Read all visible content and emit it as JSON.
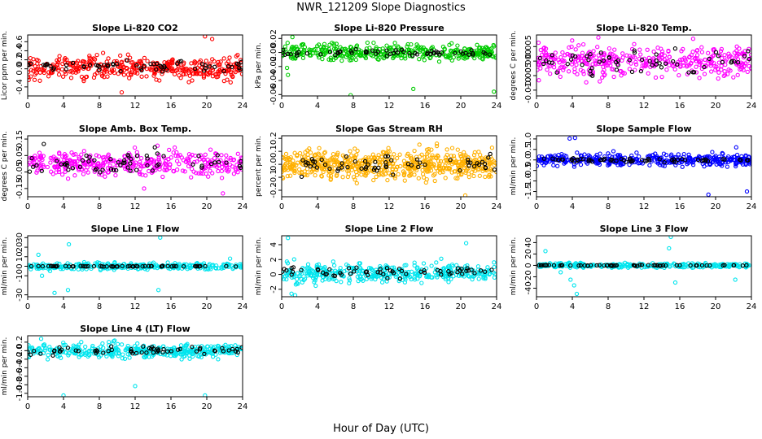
{
  "figure": {
    "title": "NWR_121209  Slope Diagnostics",
    "xlabel": "Hour of Day (UTC)"
  },
  "chart_data": [
    {
      "type": "scatter",
      "title": "Slope Li-820 CO2",
      "ylabel": "Licor ppm per min.",
      "color": "#ff0000",
      "xlim": [
        0,
        24
      ],
      "xticks": [
        0,
        4,
        8,
        12,
        16,
        20,
        24
      ],
      "ylim": [
        -0.6,
        0.75
      ],
      "yticks": [
        -0.4,
        0,
        0.2,
        0.4,
        0.6
      ],
      "ytick_labels": [
        "-0.4",
        "0.0",
        "0.2",
        "0.4",
        "0.6"
      ],
      "series": [
        {
          "color": "#ff0000",
          "n": 380,
          "mean": 0.02,
          "sd": 0.18,
          "outliers": [
            [
              19.8,
              0.72
            ],
            [
              20.6,
              0.66
            ],
            [
              10.5,
              -0.52
            ]
          ]
        },
        {
          "color": "#000000",
          "n": 60,
          "mean": 0.06,
          "sd": 0.08,
          "outliers": []
        }
      ]
    },
    {
      "type": "scatter",
      "title": "Slope Li-820 Pressure",
      "ylabel": "kPa per min.",
      "color": "#00cc00",
      "xlim": [
        0,
        24
      ],
      "xticks": [
        0,
        4,
        8,
        12,
        16,
        20,
        24
      ],
      "ylim": [
        -0.062,
        0.025
      ],
      "yticks": [
        -0.06,
        -0.04,
        -0.02,
        0,
        0.02
      ],
      "ytick_labels": [
        "-0.06",
        "-0.04",
        "-0.02",
        "0.00",
        "0.02"
      ],
      "series": [
        {
          "color": "#00cc00",
          "n": 380,
          "mean": 0.0,
          "sd": 0.008,
          "outliers": [
            [
              0.6,
              -0.022
            ],
            [
              0.7,
              -0.032
            ],
            [
              7.7,
              -0.061
            ],
            [
              14.7,
              -0.052
            ],
            [
              23.7,
              -0.056
            ],
            [
              1.2,
              0.022
            ]
          ]
        },
        {
          "color": "#000000",
          "n": 60,
          "mean": 0.0,
          "sd": 0.003,
          "outliers": []
        }
      ]
    },
    {
      "type": "scatter",
      "title": "Slope Li-820 Temp.",
      "ylabel": "degrees C per min.",
      "color": "#ff00ff",
      "xlim": [
        0,
        24
      ],
      "xticks": [
        0,
        4,
        8,
        12,
        16,
        20,
        24
      ],
      "ylim": [
        -0.012,
        0.009
      ],
      "yticks": [
        -0.01,
        -0.005,
        0,
        0.005
      ],
      "ytick_labels": [
        "-0.010",
        "-0.005",
        "0.000",
        "0.005"
      ],
      "series": [
        {
          "color": "#ff00ff",
          "n": 380,
          "mean": 0.0,
          "sd": 0.004,
          "outliers": []
        },
        {
          "color": "#000000",
          "n": 60,
          "mean": 0.0,
          "sd": 0.003,
          "outliers": []
        }
      ]
    },
    {
      "type": "scatter",
      "title": "Slope Amb. Box Temp.",
      "ylabel": "degrees C per min.",
      "color": "#ff00ff",
      "xlim": [
        0,
        24
      ],
      "xticks": [
        0,
        4,
        8,
        12,
        16,
        20,
        24
      ],
      "ylim": [
        -0.2,
        0.17
      ],
      "yticks": [
        -0.15,
        -0.05,
        0.05,
        0.15
      ],
      "ytick_labels": [
        "-0.15",
        "-0.05",
        "0.05",
        "0.15"
      ],
      "series": [
        {
          "color": "#ff00ff",
          "n": 380,
          "mean": 0.0,
          "sd": 0.05,
          "outliers": [
            [
              14.5,
              0.11
            ],
            [
              21.8,
              -0.18
            ],
            [
              13,
              -0.15
            ]
          ]
        },
        {
          "color": "#000000",
          "n": 60,
          "mean": 0.0,
          "sd": 0.045,
          "outliers": [
            [
              1.8,
              0.12
            ],
            [
              14.2,
              0.1
            ]
          ]
        }
      ]
    },
    {
      "type": "scatter",
      "title": "Slope Gas Stream RH",
      "ylabel": "percent per min.",
      "color": "#ffb000",
      "xlim": [
        0,
        24
      ],
      "xticks": [
        0,
        4,
        8,
        12,
        16,
        20,
        24
      ],
      "ylim": [
        -0.25,
        0.22
      ],
      "yticks": [
        -0.2,
        -0.1,
        0,
        0.1,
        0.2
      ],
      "ytick_labels": [
        "-0.2",
        "-0.1",
        "0.0",
        "0.1",
        "0.2"
      ],
      "series": [
        {
          "color": "#ffb000",
          "n": 600,
          "mean": 0.0,
          "sd": 0.08,
          "outliers": [
            [
              20.5,
              -0.24
            ]
          ]
        },
        {
          "color": "#000000",
          "n": 60,
          "mean": 0.0,
          "sd": 0.06,
          "outliers": []
        }
      ]
    },
    {
      "type": "scatter",
      "title": "Slope Sample Flow",
      "ylabel": "ml/min per min.",
      "color": "#0000ff",
      "xlim": [
        0,
        24
      ],
      "xticks": [
        0,
        4,
        8,
        12,
        16,
        20,
        24
      ],
      "ylim": [
        -1.75,
        1.15
      ],
      "yticks": [
        -1.5,
        -1,
        -0.5,
        0,
        0.5,
        1
      ],
      "ytick_labels": [
        "-1.5",
        "-1.0",
        "-0.5",
        "0.0",
        "0.5",
        "1.0"
      ],
      "series": [
        {
          "color": "#0000ff",
          "n": 380,
          "mean": 0.0,
          "sd": 0.2,
          "outliers": [
            [
              3.7,
              1.02
            ],
            [
              4.3,
              1.05
            ],
            [
              19.2,
              -1.65
            ],
            [
              23.5,
              -1.5
            ],
            [
              22.3,
              0.6
            ]
          ]
        },
        {
          "color": "#000000",
          "n": 60,
          "mean": 0.0,
          "sd": 0.06,
          "outliers": []
        }
      ]
    },
    {
      "type": "scatter",
      "title": "Slope Line 1 Flow",
      "ylabel": "ml/min per min.",
      "color": "#00e5ee",
      "xlim": [
        0,
        24
      ],
      "xticks": [
        0,
        4,
        8,
        12,
        16,
        20,
        24
      ],
      "ylim": [
        -32,
        32
      ],
      "yticks": [
        -30,
        -10,
        0,
        10,
        20,
        30
      ],
      "ytick_labels": [
        "-30",
        "-10",
        "0",
        "10",
        "20",
        "30"
      ],
      "series": [
        {
          "color": "#00e5ee",
          "n": 300,
          "mean": 0.0,
          "sd": 2.5,
          "outliers": [
            [
              4.6,
              23
            ],
            [
              14.8,
              30
            ],
            [
              3,
              -28
            ],
            [
              4.5,
              -25
            ],
            [
              14.6,
              -25
            ],
            [
              22.6,
              8
            ],
            [
              2.5,
              -5
            ],
            [
              1.2,
              12
            ],
            [
              1.6,
              -10
            ]
          ]
        },
        {
          "color": "#000000",
          "n": 60,
          "mean": 0.0,
          "sd": 0.3,
          "outliers": []
        }
      ]
    },
    {
      "type": "scatter",
      "title": "Slope Line 2 Flow",
      "ylabel": "ml/min per min.",
      "color": "#00e5ee",
      "xlim": [
        0,
        24
      ],
      "xticks": [
        0,
        4,
        8,
        12,
        16,
        20,
        24
      ],
      "ylim": [
        -3,
        5.2
      ],
      "yticks": [
        -2,
        0,
        2,
        4
      ],
      "ytick_labels": [
        "-2",
        "0",
        "2",
        "4"
      ],
      "series": [
        {
          "color": "#00e5ee",
          "n": 380,
          "mean": 0.2,
          "sd": 0.9,
          "outliers": [
            [
              0.7,
              4.9
            ],
            [
              20.6,
              4.2
            ],
            [
              1.1,
              -2.6
            ],
            [
              1.5,
              -2.8
            ]
          ]
        },
        {
          "color": "#000000",
          "n": 60,
          "mean": 0.3,
          "sd": 0.5,
          "outliers": []
        }
      ]
    },
    {
      "type": "scatter",
      "title": "Slope Line 3 Flow",
      "ylabel": "ml/min per min.",
      "color": "#00e5ee",
      "xlim": [
        0,
        24
      ],
      "xticks": [
        0,
        4,
        8,
        12,
        16,
        20,
        24
      ],
      "ylim": [
        -55,
        52
      ],
      "yticks": [
        -40,
        -20,
        0,
        20,
        40
      ],
      "ytick_labels": [
        "-40",
        "-20",
        "0",
        "20",
        "40"
      ],
      "series": [
        {
          "color": "#00e5ee",
          "n": 300,
          "mean": 0.0,
          "sd": 3,
          "outliers": [
            [
              15,
              50
            ],
            [
              1,
              25
            ],
            [
              4.2,
              -35
            ],
            [
              4.5,
              -50
            ],
            [
              3.8,
              -25
            ],
            [
              15.5,
              -30
            ],
            [
              22.2,
              -25
            ],
            [
              14.8,
              30
            ],
            [
              2.7,
              -12
            ]
          ]
        },
        {
          "color": "#000000",
          "n": 60,
          "mean": 0.0,
          "sd": 0.5,
          "outliers": []
        }
      ]
    },
    {
      "type": "scatter",
      "title": "Slope Line 4 (LT) Flow",
      "ylabel": "ml/min per min.",
      "color": "#00e5ee",
      "xlim": [
        0,
        24
      ],
      "xticks": [
        0,
        4,
        8,
        12,
        16,
        20,
        24
      ],
      "ylim": [
        -1.08,
        0.35
      ],
      "yticks": [
        -1,
        -0.8,
        -0.6,
        -0.4,
        -0.2,
        0,
        0.2
      ],
      "ytick_labels": [
        "-1.0",
        "-0.8",
        "-0.6",
        "-0.4",
        "-0.2",
        "0.0",
        "0.2"
      ],
      "series": [
        {
          "color": "#00e5ee",
          "n": 380,
          "mean": 0.0,
          "sd": 0.12,
          "outliers": [
            [
              12,
              -0.83
            ],
            [
              4,
              -1.05
            ],
            [
              19.8,
              -1.05
            ],
            [
              1.5,
              0.28
            ]
          ]
        },
        {
          "color": "#000000",
          "n": 60,
          "mean": 0.0,
          "sd": 0.07,
          "outliers": []
        }
      ]
    }
  ]
}
